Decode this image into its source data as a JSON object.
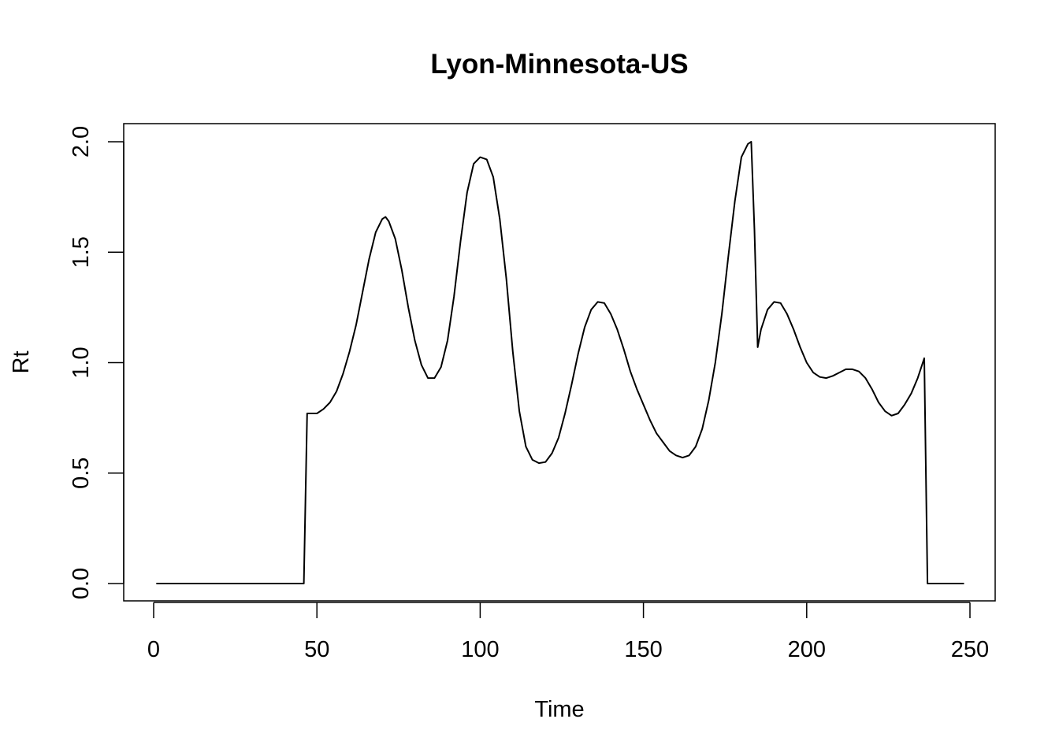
{
  "chart_data": {
    "type": "line",
    "title": "Lyon-Minnesota-US",
    "xlabel": "Time",
    "ylabel": "Rt",
    "xlim": [
      0,
      250
    ],
    "ylim": [
      0,
      2.0
    ],
    "x_ticks": [
      0,
      50,
      100,
      150,
      200,
      250
    ],
    "y_ticks": [
      0.0,
      0.5,
      1.0,
      1.5,
      2.0
    ],
    "x_tick_labels": [
      "0",
      "50",
      "100",
      "150",
      "200",
      "250"
    ],
    "y_tick_labels": [
      "0.0",
      "0.5",
      "1.0",
      "1.5",
      "2.0"
    ],
    "grid": false,
    "line_color": "#000000",
    "series": [
      {
        "x": [
          1,
          10,
          20,
          30,
          40,
          46,
          47,
          50,
          52,
          54,
          56,
          58,
          60,
          62,
          64,
          66,
          68,
          70,
          71,
          72,
          74,
          76,
          78,
          80,
          82,
          84,
          86,
          88,
          90,
          92,
          94,
          96,
          98,
          100,
          102,
          104,
          106,
          108,
          110,
          112,
          114,
          116,
          118,
          120,
          122,
          124,
          126,
          128,
          130,
          132,
          134,
          136,
          138,
          140,
          142,
          144,
          146,
          148,
          150,
          152,
          154,
          156,
          158,
          160,
          162,
          164,
          166,
          168,
          170,
          172,
          174,
          176,
          178,
          180,
          182,
          183,
          184,
          185,
          186,
          188,
          190,
          192,
          194,
          196,
          198,
          200,
          202,
          204,
          206,
          208,
          210,
          212,
          214,
          216,
          218,
          220,
          222,
          224,
          226,
          228,
          230,
          232,
          234,
          236,
          237,
          240,
          244,
          248
        ],
        "y": [
          0,
          0,
          0,
          0,
          0,
          0,
          0.77,
          0.77,
          0.79,
          0.82,
          0.87,
          0.95,
          1.05,
          1.17,
          1.32,
          1.47,
          1.59,
          1.65,
          1.66,
          1.64,
          1.56,
          1.42,
          1.25,
          1.1,
          0.99,
          0.93,
          0.93,
          0.98,
          1.1,
          1.3,
          1.55,
          1.77,
          1.9,
          1.93,
          1.92,
          1.84,
          1.65,
          1.38,
          1.05,
          0.78,
          0.62,
          0.56,
          0.545,
          0.55,
          0.59,
          0.66,
          0.77,
          0.9,
          1.04,
          1.16,
          1.24,
          1.275,
          1.27,
          1.22,
          1.15,
          1.06,
          0.96,
          0.88,
          0.81,
          0.74,
          0.68,
          0.64,
          0.6,
          0.58,
          0.57,
          0.58,
          0.62,
          0.7,
          0.83,
          1.0,
          1.22,
          1.48,
          1.73,
          1.93,
          1.99,
          2.0,
          1.6,
          1.07,
          1.15,
          1.24,
          1.275,
          1.27,
          1.22,
          1.15,
          1.07,
          1.0,
          0.955,
          0.935,
          0.93,
          0.94,
          0.955,
          0.97,
          0.97,
          0.96,
          0.93,
          0.88,
          0.82,
          0.78,
          0.76,
          0.77,
          0.81,
          0.86,
          0.93,
          1.02,
          0,
          0,
          0,
          0
        ]
      }
    ]
  }
}
